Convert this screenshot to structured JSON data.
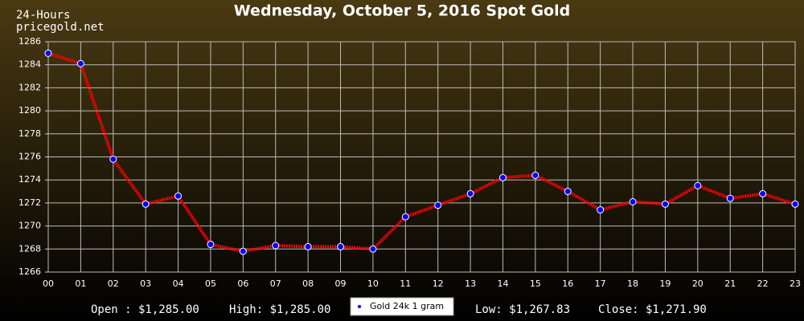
{
  "chart_data": {
    "type": "line",
    "title": "Wednesday, October 5, 2016 Spot Gold",
    "period_label": "24-Hours",
    "source": "pricegold.net",
    "categories": [
      "00",
      "01",
      "02",
      "03",
      "04",
      "05",
      "06",
      "07",
      "08",
      "09",
      "10",
      "11",
      "12",
      "13",
      "14",
      "15",
      "16",
      "17",
      "18",
      "19",
      "20",
      "21",
      "22",
      "23"
    ],
    "series": [
      {
        "name": "Gold 24k 1 gram",
        "color": "#ff0000",
        "marker_color": "#0000ff",
        "values": [
          1285.0,
          1284.1,
          1275.8,
          1271.9,
          1272.6,
          1268.4,
          1267.8,
          1268.3,
          1268.2,
          1268.2,
          1268.0,
          1270.8,
          1271.8,
          1272.8,
          1274.2,
          1274.4,
          1273.0,
          1271.4,
          1272.1,
          1271.9,
          1273.5,
          1272.4,
          1272.8,
          1271.9
        ]
      }
    ],
    "ylim": [
      1266,
      1286
    ],
    "yticks": [
      1266,
      1268,
      1270,
      1272,
      1274,
      1276,
      1278,
      1280,
      1282,
      1284,
      1286
    ],
    "grid": true,
    "stats": [
      "Open : $1,285.00",
      "High: $1,285.00",
      "Low: $1,267.83",
      "Close: $1,271.90"
    ]
  }
}
